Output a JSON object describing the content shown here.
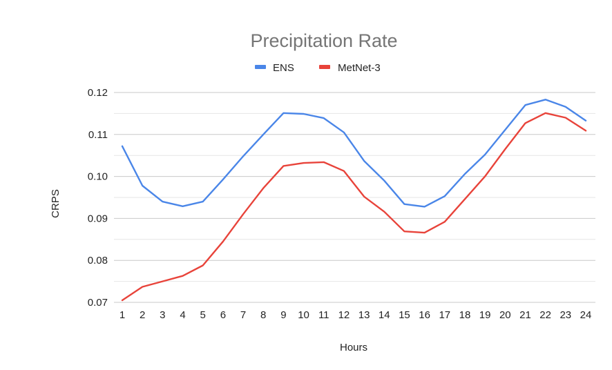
{
  "chart_data": {
    "type": "line",
    "title": "Precipitation Rate",
    "xlabel": "Hours",
    "ylabel": "CRPS",
    "x": [
      1,
      2,
      3,
      4,
      5,
      6,
      7,
      8,
      9,
      10,
      11,
      12,
      13,
      14,
      15,
      16,
      17,
      18,
      19,
      20,
      21,
      22,
      23,
      24
    ],
    "x_tick_labels": [
      "1",
      "2",
      "3",
      "4",
      "5",
      "6",
      "7",
      "8",
      "9",
      "10",
      "11",
      "12",
      "13",
      "14",
      "15",
      "16",
      "17",
      "18",
      "19",
      "20",
      "21",
      "22",
      "23",
      "24"
    ],
    "ylim": [
      0.07,
      0.12
    ],
    "y_ticks": [
      0.07,
      0.08,
      0.09,
      0.1,
      0.11,
      0.12
    ],
    "y_tick_labels": [
      "0.07",
      "0.08",
      "0.09",
      "0.10",
      "0.11",
      "0.12"
    ],
    "grid": true,
    "legend_position": "top-center",
    "series": [
      {
        "name": "ENS",
        "color": "#4a86e8",
        "values": [
          0.1072,
          0.0978,
          0.094,
          0.0929,
          0.094,
          0.0993,
          0.1048,
          0.11,
          0.1151,
          0.1149,
          0.1139,
          0.1105,
          0.1037,
          0.099,
          0.0934,
          0.0928,
          0.0953,
          0.1006,
          0.1052,
          0.1111,
          0.117,
          0.1183,
          0.1166,
          0.1133
        ]
      },
      {
        "name": "MetNet-3",
        "color": "#e8433a",
        "values": [
          0.0705,
          0.0737,
          0.075,
          0.0763,
          0.0788,
          0.0845,
          0.091,
          0.0972,
          0.1025,
          0.1032,
          0.1034,
          0.1013,
          0.0952,
          0.0916,
          0.0869,
          0.0866,
          0.0892,
          0.0946,
          0.1,
          0.1065,
          0.1127,
          0.1151,
          0.114,
          0.1109
        ]
      }
    ]
  }
}
